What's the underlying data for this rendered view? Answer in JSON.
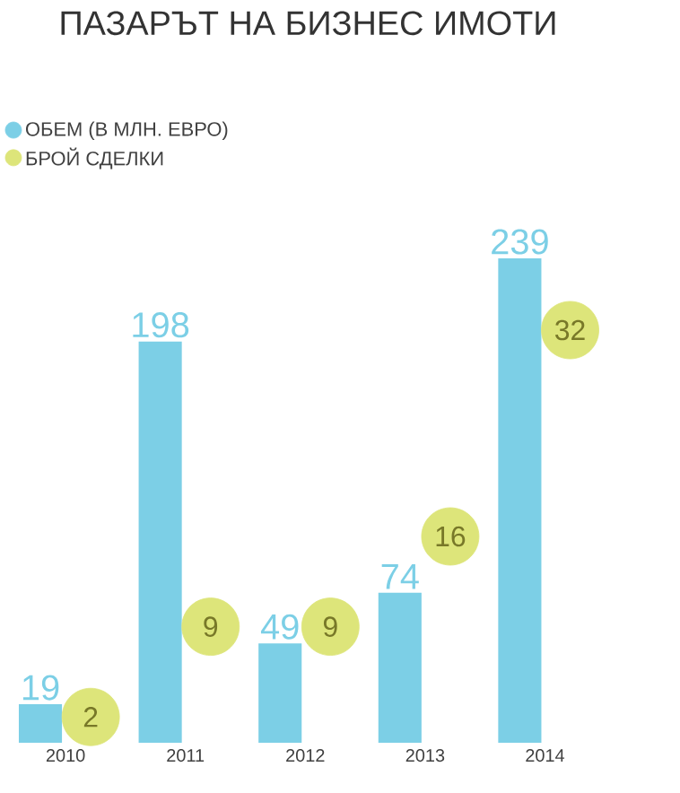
{
  "chart_data": {
    "type": "bar",
    "title": "ПАЗАРЪТ НА БИЗНЕС ИМОТИ",
    "categories": [
      "2010",
      "2011",
      "2012",
      "2013",
      "2014"
    ],
    "series": [
      {
        "name": "ОБЕМ (В МЛН. ЕВРО)",
        "color": "#7ccfe6",
        "values": [
          19,
          198,
          49,
          74,
          239
        ]
      },
      {
        "name": "БРОЙ СДЕЛКИ",
        "type": "bubble",
        "axis": "y2",
        "color": "#dde57a",
        "values": [
          2,
          9,
          9,
          16,
          32
        ],
        "sizes": [
          1,
          1,
          1,
          1,
          1
        ]
      }
    ],
    "data_labels": true,
    "legend": "top left",
    "tick_labels": "x"
  }
}
